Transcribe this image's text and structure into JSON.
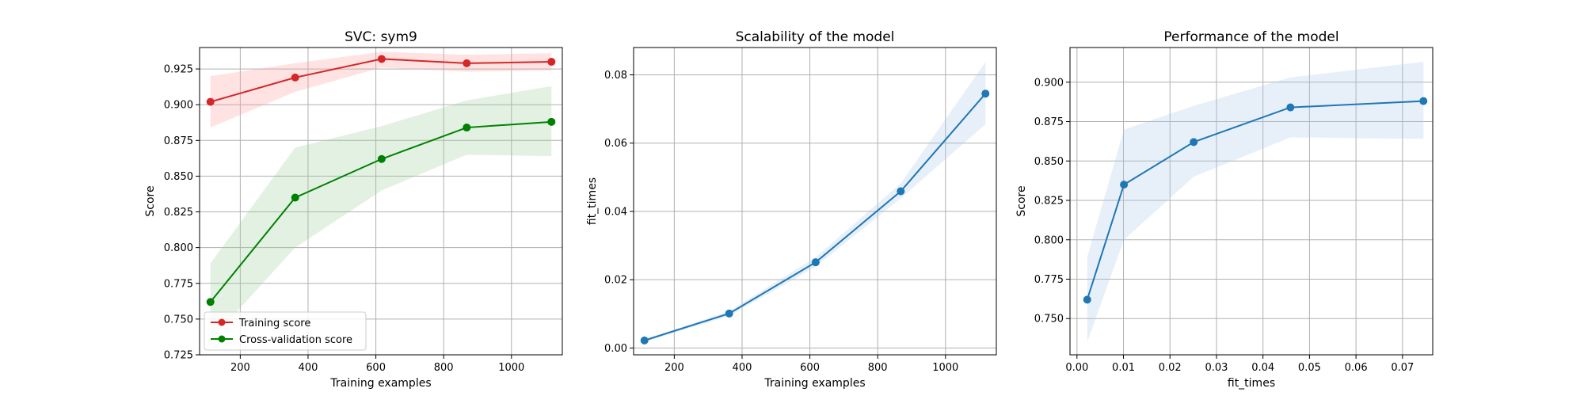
{
  "chart_data": [
    {
      "type": "line",
      "title": "SVC: sym9",
      "xlabel": "Training examples",
      "ylabel": "Score",
      "xlim": [
        80,
        1150
      ],
      "ylim": [
        0.725,
        0.94
      ],
      "xticks": [
        200,
        400,
        600,
        800,
        1000
      ],
      "xtick_labels": [
        "200",
        "400",
        "600",
        "800",
        "1000"
      ],
      "yticks": [
        0.725,
        0.75,
        0.775,
        0.8,
        0.825,
        0.85,
        0.875,
        0.9,
        0.925
      ],
      "ytick_labels": [
        "0.725",
        "0.750",
        "0.775",
        "0.800",
        "0.825",
        "0.850",
        "0.875",
        "0.900",
        "0.925"
      ],
      "grid": true,
      "legend": "lower-left",
      "x": [
        112,
        362,
        617,
        868,
        1118
      ],
      "series": [
        {
          "name": "Training score",
          "color": "#d62728",
          "band_color": "#ff9999",
          "values": [
            0.902,
            0.919,
            0.932,
            0.929,
            0.93
          ],
          "lower": [
            0.884,
            0.909,
            0.926,
            0.923,
            0.924
          ],
          "upper": [
            0.92,
            0.929,
            0.937,
            0.935,
            0.936
          ]
        },
        {
          "name": "Cross-validation score",
          "color": "#008000",
          "band_color": "#99cc99",
          "values": [
            0.762,
            0.835,
            0.862,
            0.884,
            0.888
          ],
          "lower": [
            0.735,
            0.8,
            0.84,
            0.865,
            0.864
          ],
          "upper": [
            0.789,
            0.87,
            0.885,
            0.903,
            0.913
          ]
        }
      ]
    },
    {
      "type": "line",
      "title": "Scalability of the model",
      "xlabel": "Training examples",
      "ylabel": "fit_times",
      "xlim": [
        80,
        1150
      ],
      "ylim": [
        -0.002,
        0.088
      ],
      "xticks": [
        200,
        400,
        600,
        800,
        1000
      ],
      "xtick_labels": [
        "200",
        "400",
        "600",
        "800",
        "1000"
      ],
      "yticks": [
        0.0,
        0.02,
        0.04,
        0.06,
        0.08
      ],
      "ytick_labels": [
        "0.00",
        "0.02",
        "0.04",
        "0.06",
        "0.08"
      ],
      "grid": true,
      "x": [
        112,
        362,
        617,
        868,
        1118
      ],
      "series": [
        {
          "color": "#1f77b4",
          "band_color": "#a8c8e8",
          "values": [
            0.0022,
            0.0101,
            0.0251,
            0.0459,
            0.0745
          ],
          "lower": [
            0.0018,
            0.0094,
            0.0238,
            0.0438,
            0.0655
          ],
          "upper": [
            0.0026,
            0.0108,
            0.0266,
            0.0482,
            0.0838
          ]
        }
      ]
    },
    {
      "type": "line",
      "title": "Performance of the model",
      "xlabel": "fit_times",
      "ylabel": "Score",
      "xlim": [
        -0.0015,
        0.0765
      ],
      "ylim": [
        0.727,
        0.922
      ],
      "xticks": [
        0.0,
        0.01,
        0.02,
        0.03,
        0.04,
        0.05,
        0.06,
        0.07
      ],
      "xtick_labels": [
        "0.00",
        "0.01",
        "0.02",
        "0.03",
        "0.04",
        "0.05",
        "0.06",
        "0.07"
      ],
      "yticks": [
        0.75,
        0.775,
        0.8,
        0.825,
        0.85,
        0.875,
        0.9
      ],
      "ytick_labels": [
        "0.750",
        "0.775",
        "0.800",
        "0.825",
        "0.850",
        "0.875",
        "0.900"
      ],
      "grid": true,
      "x": [
        0.0022,
        0.0101,
        0.0251,
        0.0459,
        0.0745
      ],
      "series": [
        {
          "color": "#1f77b4",
          "band_color": "#a8c8e8",
          "values": [
            0.762,
            0.835,
            0.862,
            0.884,
            0.888
          ],
          "lower": [
            0.735,
            0.8,
            0.84,
            0.865,
            0.864
          ],
          "upper": [
            0.789,
            0.87,
            0.885,
            0.903,
            0.913
          ]
        }
      ]
    }
  ]
}
